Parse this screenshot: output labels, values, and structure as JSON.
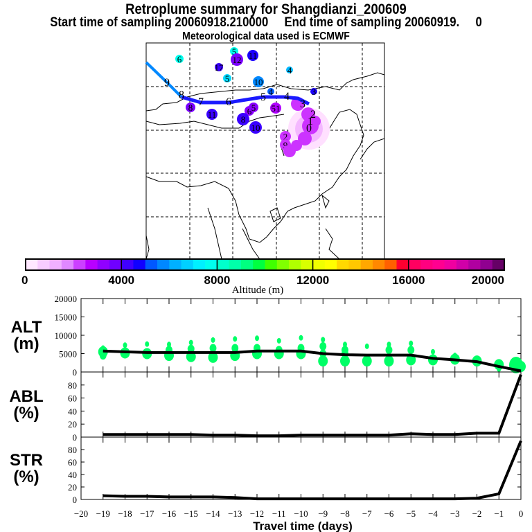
{
  "titles": {
    "main": "Retroplume summary for Shangdianzi_200609",
    "sampling": "Start time of sampling 20060918.210000     End time of sampling 20060919.     0",
    "met": "Meteorological data used is ECMWF"
  },
  "map": {
    "trajectory_labels": [
      "9",
      "8",
      "7",
      "6",
      "5",
      "4",
      "3",
      "2",
      "1",
      "0"
    ],
    "cluster_labels": [
      {
        "label": "6",
        "color": "#00ffee"
      },
      {
        "label": "5",
        "color": "#00ffee"
      },
      {
        "label": "12",
        "color": "#7a00ff"
      },
      {
        "label": "11",
        "color": "#1a00ff"
      },
      {
        "label": "17",
        "color": "#3a00ff"
      },
      {
        "label": "5",
        "color": "#00d8ff"
      },
      {
        "label": "10",
        "color": "#0088ff"
      },
      {
        "label": "4",
        "color": "#00b8ff"
      },
      {
        "label": "4",
        "color": "#0060ff"
      },
      {
        "label": "3",
        "color": "#1a00ff"
      },
      {
        "label": "8",
        "color": "#7a00ff"
      },
      {
        "label": "11",
        "color": "#3a00ff"
      },
      {
        "label": "6",
        "color": "#8a00ff"
      },
      {
        "label": "5",
        "color": "#8a00ff"
      },
      {
        "label": "8",
        "color": "#3a00ff"
      },
      {
        "label": "10",
        "color": "#3a00ff"
      },
      {
        "label": "51",
        "color": "#b000ff"
      },
      {
        "label": "2",
        "color": "#cc33ff"
      },
      {
        "label": "9",
        "color": "#cc33ff"
      }
    ]
  },
  "colorbar": {
    "label": "Altitude (m)",
    "ticks": [
      "0",
      "4000",
      "8000",
      "12000",
      "16000",
      "20000"
    ],
    "colors": [
      "#ffe8ff",
      "#f8ccff",
      "#f0b0ff",
      "#e088ff",
      "#cc40ff",
      "#b800ff",
      "#9000ff",
      "#7000ff",
      "#4000ff",
      "#1000ff",
      "#0058ff",
      "#0088ff",
      "#00b0ff",
      "#00d0ff",
      "#00f0ff",
      "#00ffee",
      "#00ffcc",
      "#00ffaa",
      "#00ff80",
      "#00ff40",
      "#40ff00",
      "#80ff00",
      "#b0ff00",
      "#d8ff00",
      "#f0ff00",
      "#ffff00",
      "#ffd800",
      "#ffc800",
      "#ffa800",
      "#ff8800",
      "#ff6000",
      "#ff0030",
      "#ff0060",
      "#ff0080",
      "#ff0090",
      "#f000a0",
      "#d000a8",
      "#b000a0",
      "#900090",
      "#660066"
    ]
  },
  "chart_data": [
    {
      "type": "scatter",
      "name": "ALT",
      "ylabel": "ALT\n(m)",
      "ylim": [
        0,
        20000
      ],
      "yticks": [
        "0",
        "5000",
        "10000",
        "15000",
        "20000"
      ],
      "x": [
        -19,
        -18,
        -17,
        -16,
        -15,
        -14,
        -13,
        -12,
        -11,
        -10,
        -9,
        -8,
        -7,
        -6,
        -5,
        -4,
        -3,
        -2,
        -1,
        0
      ],
      "mean_line": [
        5700,
        5500,
        5300,
        5300,
        5300,
        5300,
        5300,
        5700,
        5700,
        5700,
        5000,
        4700,
        4600,
        4600,
        4600,
        3700,
        3300,
        2800,
        1500,
        300
      ],
      "clusters": [
        [
          5500,
          4500,
          6500
        ],
        [
          5200,
          7300
        ],
        [
          5000,
          7600
        ],
        [
          4500,
          6000,
          7500
        ],
        [
          4200,
          6300,
          8000
        ],
        [
          4000,
          6500,
          8700
        ],
        [
          4500,
          6500,
          9000
        ],
        [
          5000,
          6500,
          9200
        ],
        [
          5000,
          6000,
          8500
        ],
        [
          5000,
          6500,
          9300
        ],
        [
          3000,
          5000,
          7000,
          8800
        ],
        [
          3000,
          5000,
          6000,
          7500
        ],
        [
          3000,
          7000
        ],
        [
          3000,
          6000,
          7500
        ],
        [
          3300,
          6000,
          7800
        ],
        [
          3300,
          5500
        ],
        [
          3500,
          4500
        ],
        [
          3000
        ],
        [
          2000,
          800
        ],
        [
          1500
        ]
      ],
      "color": "#00ff66"
    },
    {
      "type": "line",
      "name": "ABL",
      "ylabel": "ABL\n(%)",
      "ylim": [
        0,
        100
      ],
      "yticks": [
        "0",
        "20",
        "40",
        "60",
        "80"
      ],
      "x": [
        -19,
        -18,
        -17,
        -16,
        -15,
        -14,
        -13,
        -12,
        -11,
        -10,
        -9,
        -8,
        -7,
        -6,
        -5,
        -4,
        -3,
        -2,
        -1,
        0
      ],
      "values": [
        4,
        4,
        4,
        4,
        4,
        3,
        3,
        2,
        2,
        3,
        3,
        3,
        3,
        3,
        5,
        4,
        4,
        6,
        6,
        96
      ]
    },
    {
      "type": "line",
      "name": "STR",
      "ylabel": "STR\n(%)",
      "ylim": [
        0,
        100
      ],
      "yticks": [
        "0",
        "20",
        "40",
        "60",
        "80"
      ],
      "x": [
        -19,
        -18,
        -17,
        -16,
        -15,
        -14,
        -13,
        -12,
        -11,
        -10,
        -9,
        -8,
        -7,
        -6,
        -5,
        -4,
        -3,
        -2,
        -1,
        0
      ],
      "values": [
        6,
        5,
        5,
        4,
        4,
        4,
        3,
        1,
        1,
        1,
        1,
        1,
        1,
        1,
        1,
        1,
        1,
        2,
        9,
        94
      ]
    }
  ],
  "xaxis": {
    "label": "Travel time (days)",
    "ticks": [
      "-20",
      "-19",
      "-18",
      "-17",
      "-16",
      "-15",
      "-14",
      "-13",
      "-12",
      "-11",
      "-10",
      "-9",
      "-8",
      "-7",
      "-6",
      "-5",
      "-4",
      "-3",
      "-2",
      "-1",
      "0"
    ]
  }
}
